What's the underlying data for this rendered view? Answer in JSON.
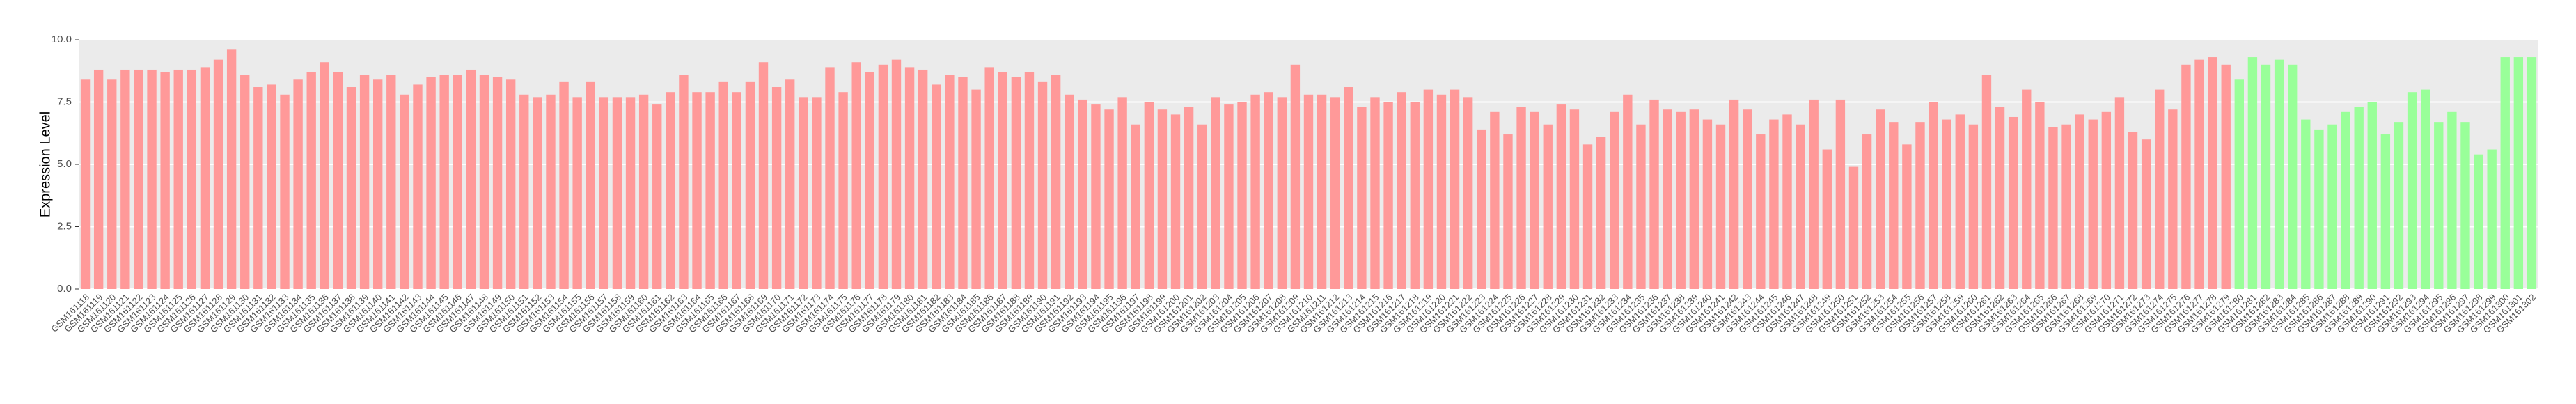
{
  "chart_data": {
    "type": "bar",
    "y_label": "Expression Level",
    "ylim": [
      0,
      10
    ],
    "yticks": [
      {
        "value": 0,
        "label": "0.0"
      },
      2.5,
      {
        "value": 5,
        "label": "5.0"
      },
      7.5,
      {
        "value": 10,
        "label": "10.0"
      }
    ],
    "grid": true,
    "categories": [
      "GSM161118",
      "GSM161119",
      "GSM161120",
      "GSM161121",
      "GSM161122",
      "GSM161123",
      "GSM161124",
      "GSM161125",
      "GSM161126",
      "GSM161127",
      "GSM161128",
      "GSM161129",
      "GSM161130",
      "GSM161131",
      "GSM161132",
      "GSM161133",
      "GSM161134",
      "GSM161135",
      "GSM161136",
      "GSM161137",
      "GSM161138",
      "GSM161139",
      "GSM161140",
      "GSM161141",
      "GSM161142",
      "GSM161143",
      "GSM161144",
      "GSM161145",
      "GSM161146",
      "GSM161147",
      "GSM161148",
      "GSM161149",
      "GSM161150",
      "GSM161151",
      "GSM161152",
      "GSM161153",
      "GSM161154",
      "GSM161155",
      "GSM161156",
      "GSM161157",
      "GSM161158",
      "GSM161159",
      "GSM161160",
      "GSM161161",
      "GSM161162",
      "GSM161163",
      "GSM161164",
      "GSM161165",
      "GSM161166",
      "GSM161167",
      "GSM161168",
      "GSM161169",
      "GSM161170",
      "GSM161171",
      "GSM161172",
      "GSM161173",
      "GSM161174",
      "GSM161175",
      "GSM161176",
      "GSM161177",
      "GSM161178",
      "GSM161179",
      "GSM161180",
      "GSM161181",
      "GSM161182",
      "GSM161183",
      "GSM161184",
      "GSM161185",
      "GSM161186",
      "GSM161187",
      "GSM161188",
      "GSM161189",
      "GSM161190",
      "GSM161191",
      "GSM161192",
      "GSM161193",
      "GSM161194",
      "GSM161195",
      "GSM161196",
      "GSM161197",
      "GSM161198",
      "GSM161199",
      "GSM161200",
      "GSM161201",
      "GSM161202",
      "GSM161203",
      "GSM161204",
      "GSM161205",
      "GSM161206",
      "GSM161207",
      "GSM161208",
      "GSM161209",
      "GSM161210",
      "GSM161211",
      "GSM161212",
      "GSM161213",
      "GSM161214",
      "GSM161215",
      "GSM161216",
      "GSM161217",
      "GSM161218",
      "GSM161219",
      "GSM161220",
      "GSM161221",
      "GSM161222",
      "GSM161223",
      "GSM161224",
      "GSM161225",
      "GSM161226",
      "GSM161227",
      "GSM161228",
      "GSM161229",
      "GSM161230",
      "GSM161231",
      "GSM161232",
      "GSM161233",
      "GSM161234",
      "GSM161235",
      "GSM161236",
      "GSM161237",
      "GSM161238",
      "GSM161239",
      "GSM161240",
      "GSM161241",
      "GSM161242",
      "GSM161243",
      "GSM161244",
      "GSM161245",
      "GSM161246",
      "GSM161247",
      "GSM161248",
      "GSM161249",
      "GSM161250",
      "GSM161251",
      "GSM161252",
      "GSM161253",
      "GSM161254",
      "GSM161255",
      "GSM161256",
      "GSM161257",
      "GSM161258",
      "GSM161259",
      "GSM161260",
      "GSM161261",
      "GSM161262",
      "GSM161263",
      "GSM161264",
      "GSM161265",
      "GSM161266",
      "GSM161267",
      "GSM161268",
      "GSM161269",
      "GSM161270",
      "GSM161271",
      "GSM161272",
      "GSM161273",
      "GSM161274",
      "GSM161275",
      "GSM161276",
      "GSM161277",
      "GSM161278",
      "GSM161279",
      "GSM161280",
      "GSM161281",
      "GSM161282",
      "GSM161283",
      "GSM161284",
      "GSM161285",
      "GSM161286",
      "GSM161287",
      "GSM161288",
      "GSM161289",
      "GSM161290",
      "GSM161291",
      "GSM161292",
      "GSM161293",
      "GSM161294",
      "GSM161295",
      "GSM161296",
      "GSM161297",
      "GSM161298",
      "GSM161299",
      "GSM161300",
      "GSM161301",
      "GSM161302"
    ],
    "values": [
      8.4,
      8.8,
      8.4,
      8.8,
      8.8,
      8.8,
      8.7,
      8.8,
      8.8,
      8.9,
      9.2,
      9.6,
      8.6,
      8.1,
      8.2,
      7.8,
      8.4,
      8.7,
      9.1,
      8.7,
      8.1,
      8.6,
      8.4,
      8.6,
      7.8,
      8.2,
      8.5,
      8.6,
      8.6,
      8.8,
      8.6,
      8.5,
      8.4,
      7.8,
      7.7,
      7.8,
      8.3,
      7.7,
      8.3,
      7.7,
      7.7,
      7.7,
      7.8,
      7.4,
      7.9,
      8.6,
      7.9,
      7.9,
      8.3,
      7.9,
      8.3,
      9.1,
      8.1,
      8.4,
      7.7,
      7.7,
      8.9,
      7.9,
      9.1,
      8.7,
      9.0,
      9.2,
      8.9,
      8.8,
      8.2,
      8.6,
      8.5,
      8.0,
      8.9,
      8.7,
      8.5,
      8.7,
      8.3,
      8.6,
      7.8,
      7.6,
      7.4,
      7.2,
      7.7,
      6.6,
      7.5,
      7.2,
      7.0,
      7.3,
      6.6,
      7.7,
      7.4,
      7.5,
      7.8,
      7.9,
      7.7,
      9.0,
      7.8,
      7.8,
      7.7,
      8.1,
      7.3,
      7.7,
      7.5,
      7.9,
      7.5,
      8.0,
      7.8,
      8.0,
      7.7,
      6.4,
      7.1,
      6.2,
      7.3,
      7.1,
      6.6,
      7.4,
      7.2,
      5.8,
      6.1,
      7.1,
      7.8,
      6.6,
      7.6,
      7.2,
      7.1,
      7.2,
      6.8,
      6.6,
      7.6,
      7.2,
      6.2,
      6.8,
      7.0,
      6.6,
      7.6,
      5.6,
      7.6,
      4.9,
      6.2,
      7.2,
      6.7,
      5.8,
      6.7,
      7.5,
      6.8,
      7.0,
      6.6,
      8.6,
      7.3,
      6.9,
      8.0,
      7.5,
      6.5,
      6.6,
      7.0,
      6.8,
      7.1,
      7.7,
      6.3,
      6.0,
      8.0,
      7.2,
      9.0,
      9.2,
      9.3,
      9.0,
      8.4,
      9.3,
      9.0,
      9.2,
      9.0,
      6.8,
      6.4,
      6.6,
      7.1,
      7.3,
      7.5,
      6.2,
      6.7,
      7.9,
      8.0,
      6.7,
      7.1,
      6.7,
      5.4,
      5.6,
      9.3,
      9.3,
      9.3
    ],
    "colors": [
      "#f99",
      "#f99",
      "#f99",
      "#f99",
      "#f99",
      "#f99",
      "#f99",
      "#f99",
      "#f99",
      "#f99",
      "#f99",
      "#f99",
      "#f99",
      "#f99",
      "#f99",
      "#f99",
      "#f99",
      "#f99",
      "#f99",
      "#f99",
      "#f99",
      "#f99",
      "#f99",
      "#f99",
      "#f99",
      "#f99",
      "#f99",
      "#f99",
      "#f99",
      "#f99",
      "#f99",
      "#f99",
      "#f99",
      "#f99",
      "#f99",
      "#f99",
      "#f99",
      "#f99",
      "#f99",
      "#f99",
      "#f99",
      "#f99",
      "#f99",
      "#f99",
      "#f99",
      "#f99",
      "#f99",
      "#f99",
      "#f99",
      "#f99",
      "#f99",
      "#f99",
      "#f99",
      "#f99",
      "#f99",
      "#f99",
      "#f99",
      "#f99",
      "#f99",
      "#f99",
      "#f99",
      "#f99",
      "#f99",
      "#f99",
      "#f99",
      "#f99",
      "#f99",
      "#f99",
      "#f99",
      "#f99",
      "#f99",
      "#f99",
      "#f99",
      "#f99",
      "#f99",
      "#f99",
      "#f99",
      "#f99",
      "#f99",
      "#f99",
      "#f99",
      "#f99",
      "#f99",
      "#f99",
      "#f99",
      "#f99",
      "#f99",
      "#f99",
      "#f99",
      "#f99",
      "#f99",
      "#f99",
      "#f99",
      "#f99",
      "#f99",
      "#f99",
      "#f99",
      "#f99",
      "#f99",
      "#f99",
      "#f99",
      "#f99",
      "#f99",
      "#f99",
      "#f99",
      "#f99",
      "#f99",
      "#f99",
      "#f99",
      "#f99",
      "#f99",
      "#f99",
      "#f99",
      "#f99",
      "#f99",
      "#f99",
      "#f99",
      "#f99",
      "#f99",
      "#f99",
      "#f99",
      "#f99",
      "#f99",
      "#f99",
      "#f99",
      "#f99",
      "#f99",
      "#f99",
      "#f99",
      "#f99",
      "#f99",
      "#f99",
      "#f99",
      "#f99",
      "#f99",
      "#f99",
      "#f99",
      "#f99",
      "#f99",
      "#f99",
      "#f99",
      "#f99",
      "#f99",
      "#f99",
      "#f99",
      "#f99",
      "#f99",
      "#f99",
      "#f99",
      "#f99",
      "#f99",
      "#f99",
      "#f99",
      "#f99",
      "#f99",
      "#f99",
      "#f99",
      "#f99",
      "#f99",
      "#f99",
      "#f99",
      "#f99",
      "#9f9",
      "#9f9",
      "#9f9",
      "#9f9",
      "#9f9",
      "#9f9",
      "#9f9",
      "#9f9",
      "#9f9",
      "#9f9",
      "#9f9",
      "#9f9",
      "#9f9",
      "#9f9",
      "#9f9",
      "#9f9",
      "#9f9",
      "#9f9",
      "#9f9",
      "#9f9",
      "#9f9",
      "#9f9",
      "#9f9"
    ]
  }
}
